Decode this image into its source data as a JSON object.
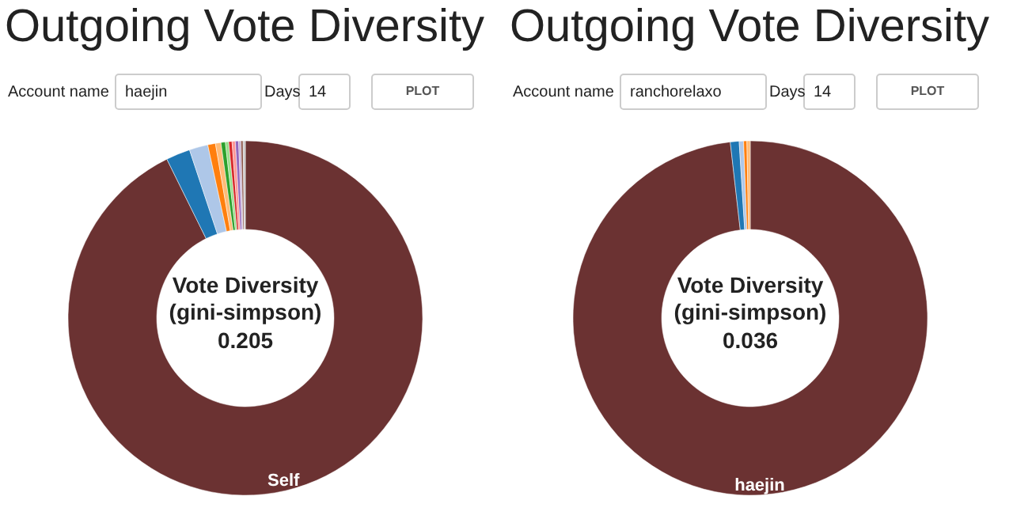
{
  "chart_data": [
    {
      "type": "donut",
      "title": "Outgoing Vote Diversity",
      "categories": [
        "Self",
        null,
        null,
        null,
        null,
        null,
        null,
        null,
        null,
        null,
        null,
        null,
        null
      ],
      "values": [
        92.7,
        2.2,
        1.7,
        0.7,
        0.5,
        0.4,
        0.3,
        0.3,
        0.3,
        0.3,
        0.2,
        0.2,
        0.2
      ],
      "colors": [
        "#6b3232",
        "#1f77b4",
        "#aec7e8",
        "#ff7f0e",
        "#ffbb78",
        "#2ca02c",
        "#98df8a",
        "#d62728",
        "#ff9896",
        "#9467bd",
        "#c5b0d5",
        "#8c564b",
        "#c7c7c7"
      ],
      "annotations": [
        "Account name",
        "haejin",
        "Days",
        "14",
        "PLOT",
        "Vote Diversity",
        "(gini-simpson)",
        "0.205"
      ]
    },
    {
      "type": "donut",
      "title": "Outgoing Vote Diversity",
      "categories": [
        "haejin",
        null,
        null,
        null,
        null
      ],
      "values": [
        98.2,
        0.8,
        0.4,
        0.3,
        0.3
      ],
      "colors": [
        "#6b3232",
        "#1f77b4",
        "#aec7e8",
        "#ff7f0e",
        "#ffbb78"
      ],
      "annotations": [
        "Account name",
        "ranchorelaxo",
        "Days",
        "14",
        "PLOT",
        "Vote Diversity",
        "(gini-simpson)",
        "0.036"
      ]
    }
  ]
}
